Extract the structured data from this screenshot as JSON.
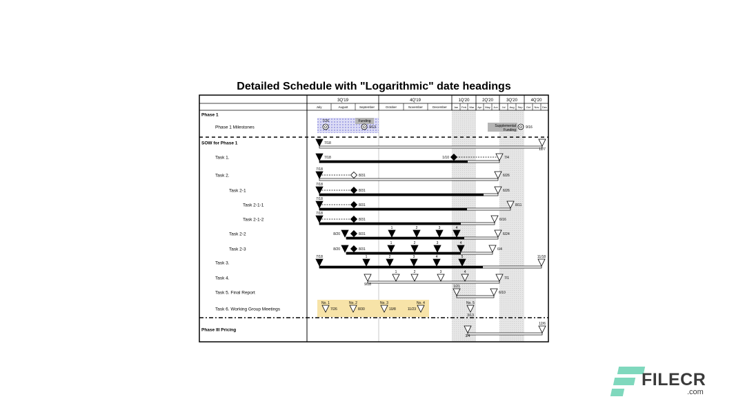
{
  "title": "Detailed Schedule with \"Logarithmic\" date headings",
  "colors": {
    "milestone_box": "#dcdcf5",
    "meeting_box": "#f7e3a8",
    "shade": "#e6e6e6",
    "callout": "#b5b5b5"
  },
  "quarters": [
    "3Q'19",
    "4Q'19",
    "1Q'20",
    "2Q'20",
    "3Q'20",
    "4Q'20"
  ],
  "months": [
    "July",
    "August",
    "September",
    "October",
    "November",
    "December",
    "Jan",
    "Feb",
    "Mar",
    "Apr",
    "May",
    "Jun",
    "Jul",
    "Aug",
    "Sep",
    "Oct",
    "Nov",
    "Dec"
  ],
  "rows": [
    {
      "label": "Phase 1",
      "bold": true,
      "markers": []
    },
    {
      "label": "Phase 1 Milestones",
      "callouts": [
        "Funding",
        "Supplemental Funding"
      ],
      "markers": [
        {
          "kind": "gear",
          "label": "7/26"
        },
        {
          "kind": "gear",
          "label": "9/13"
        },
        {
          "kind": "gear",
          "label": "9/16"
        }
      ]
    },
    {
      "label": "SOW for Phase 1",
      "bold": true,
      "markers": [
        {
          "kind": "filled",
          "label": "7/18"
        },
        {
          "kind": "open",
          "label": "12/7"
        }
      ]
    },
    {
      "label": "Task 1.",
      "markers": [
        {
          "kind": "filled",
          "label": "7/18"
        },
        {
          "kind": "diamond",
          "label": "1/10"
        },
        {
          "kind": "open",
          "label": "7/4"
        }
      ]
    },
    {
      "label": "Task 2.",
      "markers": [
        {
          "kind": "filled",
          "label": "7/18"
        },
        {
          "kind": "open-diamond",
          "label": "8/31"
        },
        {
          "kind": "open",
          "label": "6/26"
        }
      ]
    },
    {
      "label": "Task 2-1",
      "markers": [
        {
          "kind": "filled",
          "label": "7/18"
        },
        {
          "kind": "diamond",
          "label": "8/31"
        },
        {
          "kind": "open",
          "label": "6/26"
        }
      ]
    },
    {
      "label": "Task 2-1-1",
      "markers": [
        {
          "kind": "filled",
          "label": "7/18"
        },
        {
          "kind": "diamond",
          "label": "8/31"
        },
        {
          "kind": "open",
          "label": "8/11"
        }
      ]
    },
    {
      "label": "Task 2-1-2",
      "markers": [
        {
          "kind": "filled",
          "label": "7/18"
        },
        {
          "kind": "diamond",
          "label": "8/31"
        },
        {
          "kind": "open",
          "label": "6/16"
        }
      ]
    },
    {
      "label": "Task 2-2",
      "markers": [
        {
          "kind": "filled",
          "label": "8/20"
        },
        {
          "kind": "diamond",
          "label": "8/31"
        },
        {
          "kind": "filled",
          "label": "1"
        },
        {
          "kind": "filled",
          "label": "2"
        },
        {
          "kind": "filled",
          "label": "3"
        },
        {
          "kind": "filled",
          "label": "4"
        },
        {
          "kind": "open",
          "label": "6/24"
        }
      ]
    },
    {
      "label": "Task 2-3",
      "markers": [
        {
          "kind": "filled",
          "label": "8/20"
        },
        {
          "kind": "diamond",
          "label": "8/31"
        },
        {
          "kind": "filled",
          "label": "1"
        },
        {
          "kind": "filled",
          "label": "2"
        },
        {
          "kind": "filled",
          "label": "3"
        },
        {
          "kind": "filled",
          "label": "4"
        },
        {
          "kind": "open",
          "label": "6/4"
        }
      ]
    },
    {
      "label": "Task 3.",
      "markers": [
        {
          "kind": "filled",
          "label": "7/18"
        },
        {
          "kind": "filled",
          "label": "1"
        },
        {
          "kind": "filled",
          "label": "2"
        },
        {
          "kind": "filled",
          "label": "3"
        },
        {
          "kind": "filled",
          "label": "4"
        },
        {
          "kind": "filled",
          "label": "5"
        },
        {
          "kind": "open",
          "label": "11/18"
        }
      ]
    },
    {
      "label": "Task 4.",
      "markers": [
        {
          "kind": "open",
          "label": "9/18"
        },
        {
          "kind": "open",
          "label": "1"
        },
        {
          "kind": "open",
          "label": "2"
        },
        {
          "kind": "open",
          "label": "3"
        },
        {
          "kind": "open",
          "label": "4"
        },
        {
          "kind": "open",
          "label": "7/1"
        }
      ]
    },
    {
      "label": "Task 5. Final Report",
      "markers": [
        {
          "kind": "open",
          "label": "1/21"
        },
        {
          "kind": "open",
          "label": "6/10"
        }
      ]
    },
    {
      "label": "Task 6. Working Group Meetings",
      "markers": [
        {
          "kind": "open",
          "label": "7/26",
          "tag": "No. 1"
        },
        {
          "kind": "open",
          "label": "8/30",
          "tag": "No. 2"
        },
        {
          "kind": "open",
          "label": "10/8",
          "tag": "No. 3"
        },
        {
          "kind": "open",
          "label": "11/23",
          "tag": "No. 4"
        },
        {
          "kind": "open",
          "label": "3/13",
          "tag": "No. 5"
        }
      ]
    },
    {
      "label": "Phase III Pricing",
      "bold": true,
      "markers": [
        {
          "kind": "open",
          "label": "3/4"
        },
        {
          "kind": "open",
          "label": "12/6"
        }
      ]
    }
  ],
  "watermark": {
    "brand": "FILECR",
    "suffix": ".com"
  }
}
